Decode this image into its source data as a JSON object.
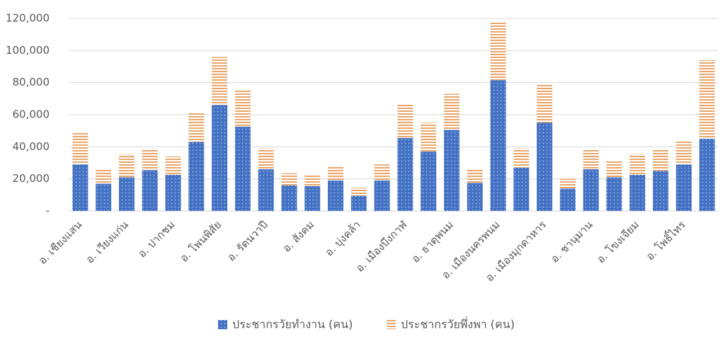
{
  "chart_data": {
    "type": "stacked_bar",
    "categories": [
      "อ. เชียงแสน",
      null,
      "อ. เวียงแก่น",
      null,
      "อ. ปากชม",
      null,
      "อ. โพนพิสัย",
      null,
      "อ. รัตนวาปี",
      null,
      "อ. สังคม",
      null,
      "อ. บุ่งคล้า",
      null,
      "อ. เมืองบึงกาฬ",
      null,
      "อ. ธาตุพนม",
      null,
      "อ. เมืองนครพนม",
      null,
      "อ. เมืองมุกดาหาร",
      null,
      "อ. ชานุมาน",
      null,
      "อ. โขงเจียม",
      null,
      "อ. โพธิ์ไทร",
      null
    ],
    "series": [
      {
        "name": "ประชากรวัยทำงาน (คน)",
        "color": "#4472c4",
        "pattern": "dots",
        "values": [
          29000,
          17000,
          21000,
          25500,
          22500,
          43000,
          66000,
          52500,
          26000,
          16000,
          15500,
          19000,
          9500,
          19000,
          45500,
          37000,
          50500,
          17500,
          81500,
          27000,
          55000,
          14000,
          26000,
          21000,
          22500,
          25000,
          29000,
          45000
        ]
      },
      {
        "name": "ประชากรวัยพึ่งพา (คน)",
        "color": "#e9a66a",
        "pattern": "stripes",
        "values": [
          19500,
          9000,
          14500,
          12500,
          11500,
          18500,
          30000,
          22500,
          13000,
          7500,
          7000,
          9000,
          5000,
          10000,
          21000,
          18000,
          22500,
          9000,
          36500,
          12000,
          24000,
          6000,
          12000,
          10500,
          13000,
          13000,
          15000,
          49000
        ]
      }
    ],
    "ylim": [
      0,
      120000
    ],
    "yticks": [
      {
        "value": 0,
        "label": "-"
      },
      {
        "value": 20000,
        "label": "20,000"
      },
      {
        "value": 40000,
        "label": "40,000"
      },
      {
        "value": 60000,
        "label": "60,000"
      },
      {
        "value": 80000,
        "label": "80,000"
      },
      {
        "value": 100000,
        "label": "100,000"
      },
      {
        "value": 120000,
        "label": "120,000"
      }
    ],
    "grid": true,
    "legend": "bottom"
  }
}
